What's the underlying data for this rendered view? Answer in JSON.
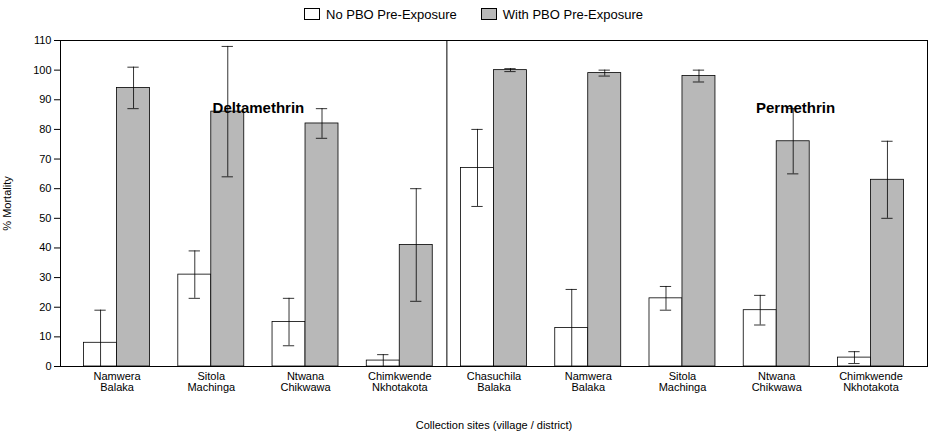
{
  "chart_data": {
    "type": "bar",
    "categories": [
      "Namwera\nBalaka",
      "Sitola\nMachinga",
      "Ntwana\nChikwawa",
      "Chimkwende\nNkhotakota",
      "Chasuchila\nBalaka",
      "Namwera\nBalaka",
      "Sitola\nMachinga",
      "Ntwana\nChikwawa",
      "Chimkwende\nNkhotakota"
    ],
    "series": [
      {
        "name": "No PBO Pre-Exposure",
        "color": "#ffffff",
        "values": [
          8,
          31,
          15,
          2,
          67,
          13,
          23,
          19,
          3
        ],
        "errors": [
          11,
          8,
          8,
          2,
          13,
          13,
          4,
          5,
          2
        ]
      },
      {
        "name": "With PBO Pre-Exposure",
        "color": "#b8b8b8",
        "values": [
          94,
          86,
          82,
          41,
          100,
          99,
          98,
          76,
          63
        ],
        "errors": [
          7,
          22,
          5,
          19,
          0.5,
          1,
          2,
          11,
          13
        ]
      }
    ],
    "ylabel": "% Mortality",
    "xlabel": "Collection sites (village / district)",
    "ylim": [
      0,
      110
    ],
    "yticks": [
      0,
      10,
      20,
      30,
      40,
      50,
      60,
      70,
      80,
      90,
      100,
      110
    ],
    "annotations": [
      {
        "text": "Deltamethrin",
        "x": 1.5,
        "y": 87
      },
      {
        "text": "Permethrin",
        "x": 7.2,
        "y": 87
      }
    ],
    "dividers": [
      3.5
    ],
    "grid": false,
    "legend": "top"
  }
}
